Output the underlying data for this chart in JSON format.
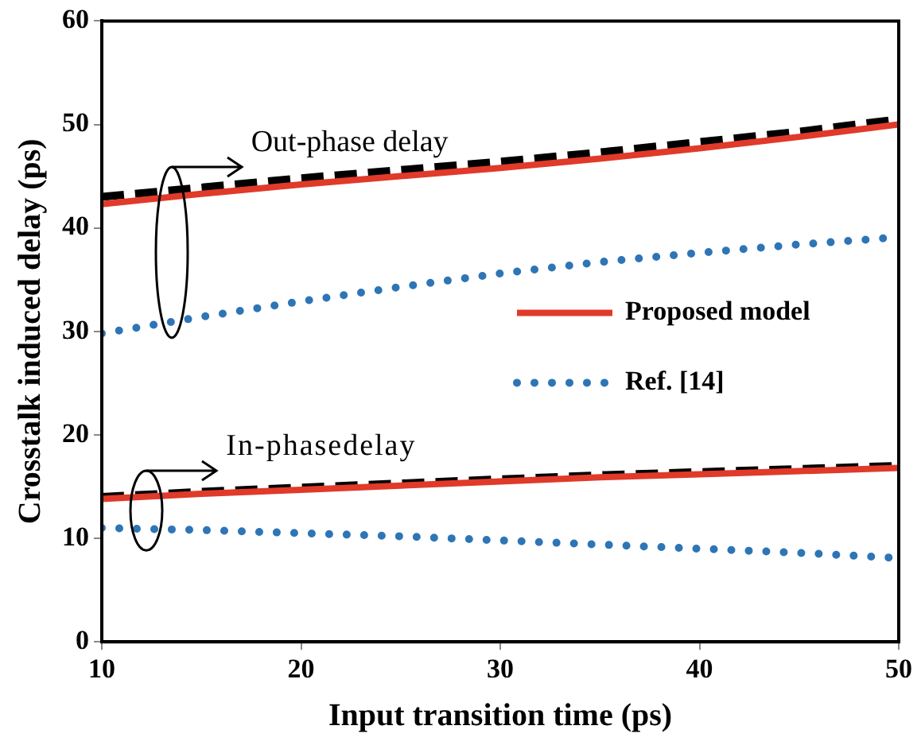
{
  "chart_data": {
    "type": "line",
    "xlabel": "Input transition time (ps)",
    "ylabel": "Crosstalk induced delay (ps)",
    "x": [
      10,
      15,
      20,
      25,
      30,
      35,
      40,
      45,
      50
    ],
    "xlim": [
      10,
      50
    ],
    "xticks": [
      10,
      20,
      30,
      40,
      50
    ],
    "ylim": [
      0,
      60
    ],
    "yticks": [
      0,
      10,
      20,
      30,
      40,
      50,
      60
    ],
    "grid": false,
    "legend": "right",
    "marker": "none",
    "series": [
      {
        "name": "Proposed model",
        "color": "#e03a2a",
        "line_style": "solid",
        "values": [
          42.3,
          43.3,
          44.2,
          45.0,
          45.8,
          46.7,
          47.7,
          48.8,
          50.0
        ]
      },
      {
        "color": "#000000",
        "line_style": "dashed",
        "values": [
          43.0,
          43.9,
          44.8,
          45.6,
          46.4,
          47.3,
          48.3,
          49.3,
          50.5
        ]
      },
      {
        "name": "Ref. [14]",
        "color": "#2e75b6",
        "line_style": "dotted",
        "values": [
          29.8,
          31.4,
          32.9,
          34.3,
          35.6,
          36.7,
          37.6,
          38.4,
          39.1
        ]
      },
      {
        "color": "#e03a2a",
        "line_style": "solid",
        "values": [
          13.8,
          14.3,
          14.7,
          15.1,
          15.5,
          15.9,
          16.2,
          16.5,
          16.8
        ]
      },
      {
        "color": "#000000",
        "line_style": "dashed",
        "values": [
          14.0,
          14.5,
          14.9,
          15.3,
          15.7,
          16.1,
          16.4,
          16.7,
          17.0
        ]
      },
      {
        "color": "#2e75b6",
        "line_style": "dotted",
        "values": [
          11.0,
          10.8,
          10.5,
          10.2,
          9.8,
          9.4,
          9.0,
          8.6,
          8.1
        ]
      }
    ],
    "annotations": [
      "Out-phase delay",
      "In-phasedelay"
    ]
  }
}
